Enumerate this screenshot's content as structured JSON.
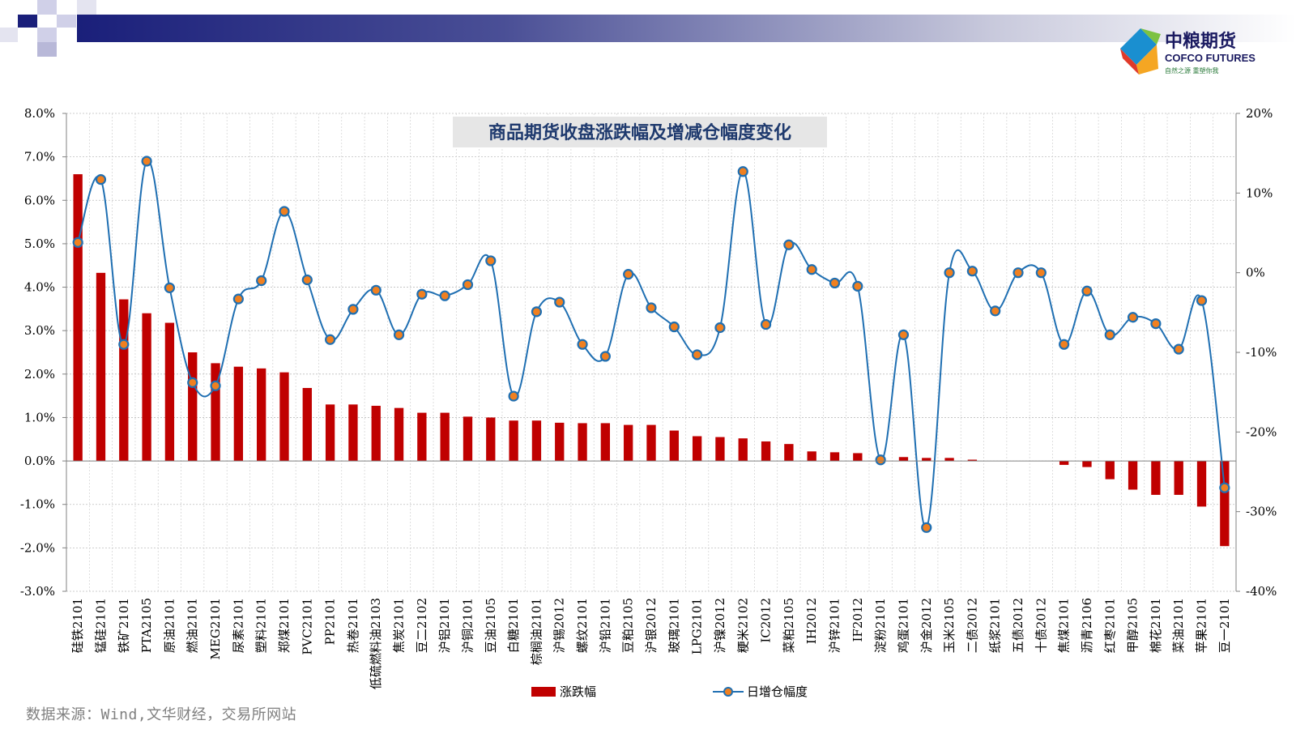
{
  "header": {
    "logo_cn": "中粮期货",
    "logo_en": "COFCO FUTURES",
    "logo_slogan": "自然之源 重塑你我"
  },
  "source_note": "数据来源：Wind,文华财经，交易所网站",
  "colors": {
    "bar": "#c00000",
    "line": "#1f6fb2",
    "marker_fill": "#f08020",
    "title_bg": "#e6e6e6",
    "title_text": "#1f3a6e"
  },
  "chart_data": {
    "type": "bar",
    "title": "商品期货收盘涨跌幅及增减仓幅度变化",
    "categories": [
      "硅铁2101",
      "锰硅2101",
      "铁矿2101",
      "PTA2105",
      "原油2101",
      "燃油2101",
      "MEG2101",
      "尿素2101",
      "塑料2101",
      "郑煤2101",
      "PVC2101",
      "PP2101",
      "热卷2101",
      "低硫燃料油2103",
      "焦炭2101",
      "豆二2102",
      "沪铝2101",
      "沪铜2101",
      "豆油2105",
      "白糖2101",
      "棕榈油2101",
      "沪锡2012",
      "螺纹2101",
      "沪铅2101",
      "豆粕2105",
      "沪银2012",
      "玻璃2101",
      "LPG2101",
      "沪镍2012",
      "粳米2102",
      "IC2012",
      "菜粕2105",
      "IH2012",
      "沪锌2101",
      "IF2012",
      "淀粉2101",
      "鸡蛋2101",
      "沪金2012",
      "玉米2105",
      "二债2012",
      "纸浆2101",
      "五债2012",
      "十债2012",
      "焦煤2101",
      "沥青2106",
      "红枣2101",
      "甲醇2105",
      "棉花2101",
      "菜油2101",
      "苹果2101",
      "豆一2101"
    ],
    "series": [
      {
        "name": "涨跌幅",
        "axis": "left",
        "type": "bar",
        "values": [
          6.6,
          4.33,
          3.72,
          3.4,
          3.18,
          2.5,
          2.25,
          2.17,
          2.13,
          2.04,
          1.68,
          1.3,
          1.3,
          1.27,
          1.22,
          1.11,
          1.11,
          1.02,
          1.0,
          0.93,
          0.93,
          0.88,
          0.87,
          0.87,
          0.83,
          0.83,
          0.7,
          0.57,
          0.55,
          0.52,
          0.45,
          0.39,
          0.22,
          0.2,
          0.18,
          0.0,
          0.09,
          0.07,
          0.07,
          0.03,
          0.0,
          0.0,
          0.0,
          -0.09,
          -0.14,
          -0.42,
          -0.66,
          -0.78,
          -0.78,
          -1.05,
          -1.96
        ]
      },
      {
        "name": "日增仓幅度",
        "axis": "right",
        "type": "line",
        "values": [
          3.8,
          11.7,
          -9.0,
          14.0,
          -1.9,
          -13.8,
          -14.2,
          -3.3,
          -1.0,
          7.7,
          -0.9,
          -8.4,
          -4.6,
          -2.2,
          -7.8,
          -2.7,
          -2.9,
          -1.5,
          1.5,
          -15.5,
          -4.9,
          -3.7,
          -9.0,
          -10.5,
          -0.2,
          -4.4,
          -6.8,
          -10.3,
          -6.9,
          12.7,
          -6.5,
          3.5,
          0.4,
          -1.3,
          -1.7,
          -23.5,
          -7.8,
          -32.0,
          0.0,
          0.2,
          -4.8,
          0.0,
          0.0,
          -9.0,
          -2.3,
          -7.8,
          -5.6,
          -6.4,
          -9.6,
          -3.5,
          -27.0
        ]
      }
    ],
    "y_left": {
      "min": -3.0,
      "max": 8.0,
      "step": 1.0,
      "format": "percent1"
    },
    "y_right": {
      "min": -40,
      "max": 20,
      "step": 10,
      "format": "percent0"
    },
    "grid": true,
    "legend_position": "bottom-center"
  }
}
